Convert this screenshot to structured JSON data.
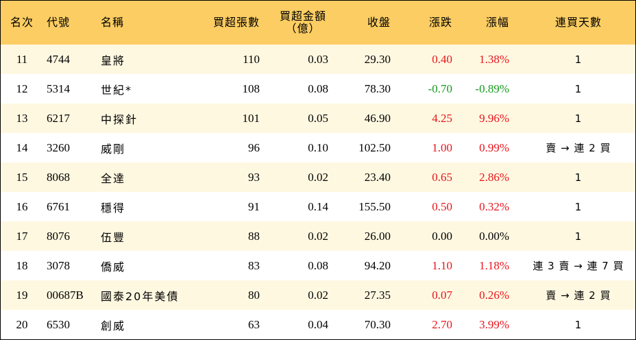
{
  "headers": {
    "rank": "名次",
    "code": "代號",
    "name": "名稱",
    "net_buy_lots": "買超張數",
    "net_buy_amount_line1": "買超金額",
    "net_buy_amount_line2": "（億）",
    "close": "收盤",
    "change": "漲跌",
    "change_pct": "漲幅",
    "streak": "連買天數"
  },
  "colors": {
    "header_bg": "#fbcd63",
    "stripe": "#fff8e1",
    "up": "#e8141c",
    "down": "#149a1e"
  },
  "rows": [
    {
      "rank": "11",
      "code": "4744",
      "name": "皇將",
      "lots": "110",
      "amount": "0.03",
      "close": "29.30",
      "change": "0.40",
      "pct": "1.38%",
      "streak": "1",
      "dir": "up"
    },
    {
      "rank": "12",
      "code": "5314",
      "name": "世紀*",
      "lots": "108",
      "amount": "0.08",
      "close": "78.30",
      "change": "-0.70",
      "pct": "-0.89%",
      "streak": "1",
      "dir": "down"
    },
    {
      "rank": "13",
      "code": "6217",
      "name": "中探針",
      "lots": "101",
      "amount": "0.05",
      "close": "46.90",
      "change": "4.25",
      "pct": "9.96%",
      "streak": "1",
      "dir": "up"
    },
    {
      "rank": "14",
      "code": "3260",
      "name": "威剛",
      "lots": "96",
      "amount": "0.10",
      "close": "102.50",
      "change": "1.00",
      "pct": "0.99%",
      "streak": "賣 → 連 2 買",
      "dir": "up"
    },
    {
      "rank": "15",
      "code": "8068",
      "name": "全達",
      "lots": "93",
      "amount": "0.02",
      "close": "23.40",
      "change": "0.65",
      "pct": "2.86%",
      "streak": "1",
      "dir": "up"
    },
    {
      "rank": "16",
      "code": "6761",
      "name": "穩得",
      "lots": "91",
      "amount": "0.14",
      "close": "155.50",
      "change": "0.50",
      "pct": "0.32%",
      "streak": "1",
      "dir": "up"
    },
    {
      "rank": "17",
      "code": "8076",
      "name": "伍豐",
      "lots": "88",
      "amount": "0.02",
      "close": "26.00",
      "change": "0.00",
      "pct": "0.00%",
      "streak": "1",
      "dir": "flat"
    },
    {
      "rank": "18",
      "code": "3078",
      "name": "僑威",
      "lots": "83",
      "amount": "0.08",
      "close": "94.20",
      "change": "1.10",
      "pct": "1.18%",
      "streak": "連 3 賣 → 連 7 買",
      "dir": "up"
    },
    {
      "rank": "19",
      "code": "00687B",
      "name": "國泰20年美債",
      "lots": "80",
      "amount": "0.02",
      "close": "27.35",
      "change": "0.07",
      "pct": "0.26%",
      "streak": "賣 → 連 2 買",
      "dir": "up"
    },
    {
      "rank": "20",
      "code": "6530",
      "name": "創威",
      "lots": "63",
      "amount": "0.04",
      "close": "70.30",
      "change": "2.70",
      "pct": "3.99%",
      "streak": "1",
      "dir": "up"
    }
  ]
}
